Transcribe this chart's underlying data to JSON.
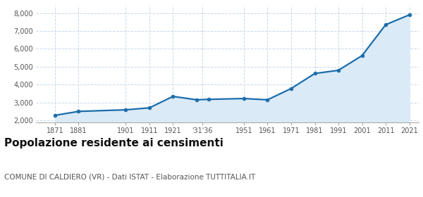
{
  "years": [
    1871,
    1881,
    1901,
    1911,
    1921,
    1931,
    1936,
    1951,
    1961,
    1971,
    1981,
    1991,
    2001,
    2011,
    2021
  ],
  "population": [
    2280,
    2500,
    2590,
    2700,
    3340,
    3150,
    3175,
    3220,
    3150,
    3780,
    4620,
    4800,
    5620,
    7350,
    7900
  ],
  "x_tick_positions": [
    1871,
    1881,
    1901,
    1911,
    1921,
    1933.5,
    1951,
    1961,
    1971,
    1981,
    1991,
    2001,
    2011,
    2021
  ],
  "x_tick_labels": [
    "1871",
    "1881",
    "1901",
    "1911",
    "1921",
    "'31'36",
    "1951",
    "1961",
    "1971",
    "1981",
    "1991",
    "2001",
    "2011",
    "2021"
  ],
  "xlim": [
    1863,
    2025
  ],
  "ylim": [
    1900,
    8400
  ],
  "yticks": [
    2000,
    3000,
    4000,
    5000,
    6000,
    7000,
    8000
  ],
  "fill_baseline": 1900,
  "line_color": "#1b6dab",
  "fill_color": "#daeaf7",
  "marker_color": "#1b6dab",
  "bg_color": "#ffffff",
  "grid_color": "#c8d8e8",
  "grid_linestyle": "--",
  "title": "Popolazione residente ai censimenti",
  "subtitle": "COMUNE DI CALDIERO (VR) - Dati ISTAT - Elaborazione TUTTITALIA.IT",
  "title_fontsize": 11,
  "subtitle_fontsize": 7.5,
  "title_color": "#111111",
  "subtitle_color": "#555555",
  "tick_fontsize": 7,
  "tick_color": "#555555"
}
